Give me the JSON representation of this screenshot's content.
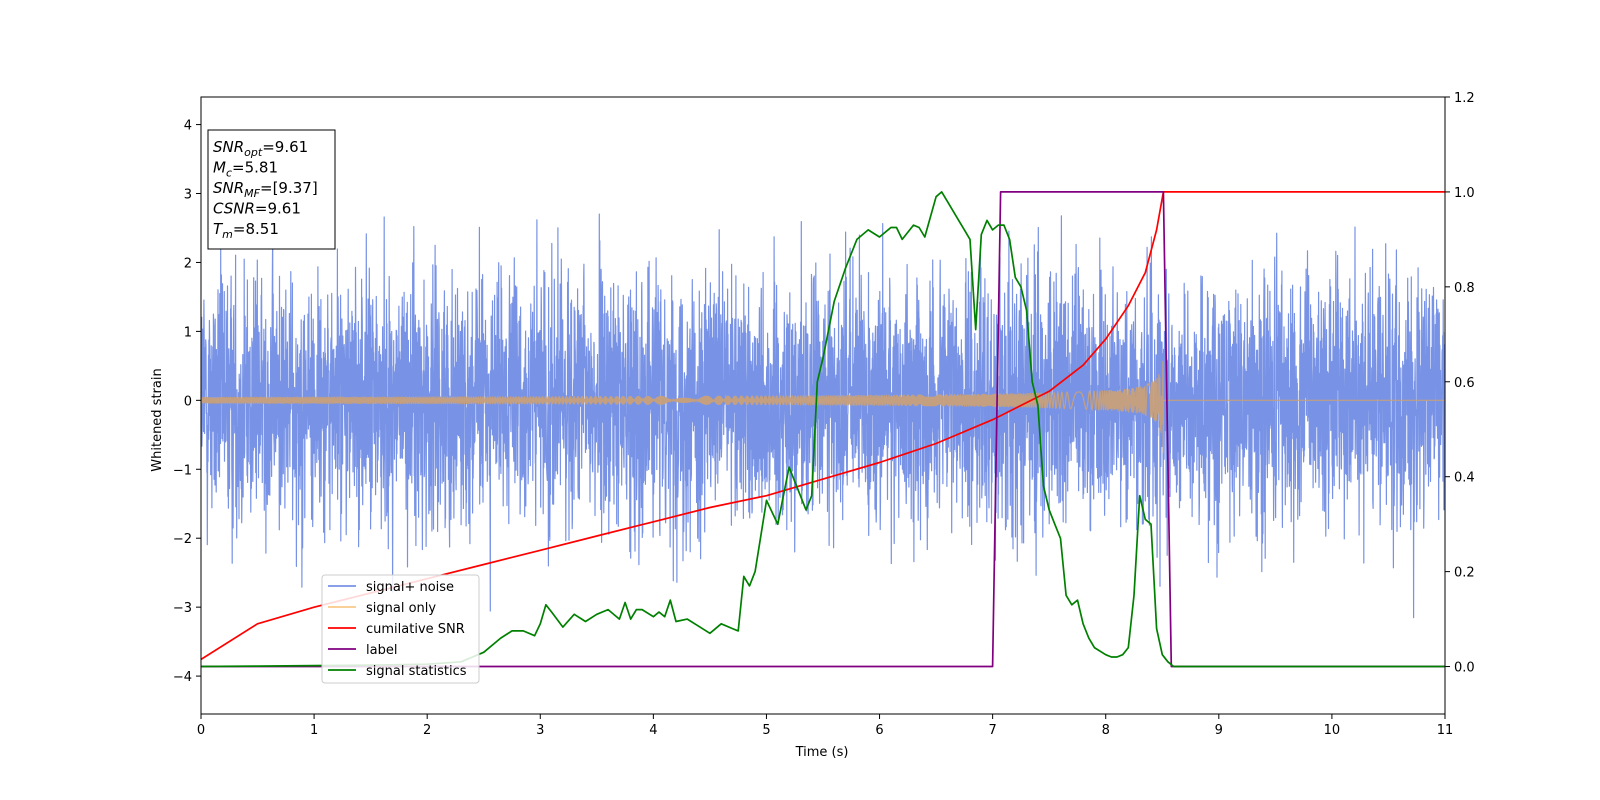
{
  "chart_data": {
    "type": "line",
    "xlabel": "Time (s)",
    "ylabel": "Whitened strain",
    "xlim": [
      0,
      11
    ],
    "ylim": [
      -4.55,
      4.4
    ],
    "y2lim": [
      -0.1,
      1.2
    ],
    "x_ticks": [
      "0",
      "1",
      "2",
      "3",
      "4",
      "5",
      "6",
      "7",
      "8",
      "9",
      "10",
      "11"
    ],
    "y_ticks": [
      "4",
      "3",
      "2",
      "1",
      "0",
      "−1",
      "−2",
      "−3",
      "−4"
    ],
    "y_tick_values": [
      4,
      3,
      2,
      1,
      0,
      -1,
      -2,
      -3,
      -4
    ],
    "y2_ticks": [
      "1.2",
      "1.0",
      "0.8",
      "0.6",
      "0.4",
      "0.2",
      "0.0"
    ],
    "y2_tick_values": [
      1.2,
      1.0,
      0.8,
      0.6,
      0.4,
      0.2,
      0.0
    ],
    "info_box": [
      {
        "sym": "SNR",
        "sub": "opt",
        "rest": "=9.61"
      },
      {
        "sym": "M",
        "sub": "c",
        "rest": "=5.81"
      },
      {
        "sym": "SNR",
        "sub": "MF",
        "rest": "=[9.37]"
      },
      {
        "sym": "CSNR",
        "sub": "",
        "rest": "=9.61"
      },
      {
        "sym": "T",
        "sub": "m",
        "rest": "=8.51"
      }
    ],
    "legend_position": "lower-left",
    "legend": [
      {
        "label": "signal+ noise",
        "color": "#7893e6"
      },
      {
        "label": "signal only",
        "color": "#f7c98a"
      },
      {
        "label": "cumilative SNR",
        "color": "#ff0000"
      },
      {
        "label": "label",
        "color": "#800080"
      },
      {
        "label": "signal statistics",
        "color": "#008000"
      }
    ],
    "series": [
      {
        "name": "signal+ noise",
        "axis": "left",
        "color": "#7893e6",
        "note": "white noise, std approx 1, peaks to about +/-4, sampled over 0-11 s"
      },
      {
        "name": "signal only",
        "axis": "left",
        "color": "#c8a07a",
        "chirp_end_time": 8.51,
        "amplitude_start": 0.05,
        "amplitude_end": 0.9
      },
      {
        "name": "cumilative SNR",
        "axis": "right",
        "color": "#ff0000",
        "x": [
          0,
          0.5,
          1,
          1.5,
          2,
          2.5,
          3,
          3.5,
          4,
          4.5,
          5,
          5.5,
          6,
          6.5,
          7,
          7.5,
          7.8,
          8.0,
          8.2,
          8.35,
          8.45,
          8.51,
          11
        ],
        "y": [
          0.015,
          0.09,
          0.125,
          0.155,
          0.185,
          0.215,
          0.245,
          0.275,
          0.305,
          0.335,
          0.36,
          0.395,
          0.43,
          0.47,
          0.52,
          0.58,
          0.635,
          0.69,
          0.76,
          0.83,
          0.92,
          1.0,
          1.0
        ]
      },
      {
        "name": "label",
        "axis": "right",
        "color": "#800080",
        "x": [
          0,
          7.0,
          7.07,
          8.51,
          8.58,
          11
        ],
        "y": [
          0,
          0,
          1,
          1,
          0,
          0
        ]
      },
      {
        "name": "signal statistics",
        "axis": "right",
        "color": "#008000",
        "x": [
          0,
          0.5,
          1,
          1.5,
          2,
          2.3,
          2.5,
          2.65,
          2.75,
          2.85,
          2.95,
          3.0,
          3.05,
          3.1,
          3.2,
          3.3,
          3.4,
          3.5,
          3.6,
          3.7,
          3.75,
          3.8,
          3.85,
          3.9,
          4.0,
          4.05,
          4.1,
          4.15,
          4.2,
          4.3,
          4.4,
          4.5,
          4.6,
          4.7,
          4.75,
          4.8,
          4.85,
          4.9,
          5.0,
          5.1,
          5.15,
          5.2,
          5.3,
          5.35,
          5.4,
          5.45,
          5.5,
          5.6,
          5.7,
          5.8,
          5.9,
          6.0,
          6.1,
          6.15,
          6.2,
          6.3,
          6.35,
          6.4,
          6.5,
          6.55,
          6.6,
          6.7,
          6.75,
          6.8,
          6.85,
          6.9,
          6.95,
          7.0,
          7.05,
          7.1,
          7.15,
          7.2,
          7.25,
          7.3,
          7.35,
          7.4,
          7.45,
          7.5,
          7.55,
          7.6,
          7.65,
          7.7,
          7.75,
          7.8,
          7.85,
          7.9,
          8.0,
          8.05,
          8.1,
          8.15,
          8.2,
          8.25,
          8.3,
          8.35,
          8.4,
          8.45,
          8.5,
          8.55,
          8.6,
          9,
          10,
          11
        ],
        "y": [
          0.0,
          0.001,
          0.002,
          0.003,
          0.005,
          0.01,
          0.03,
          0.06,
          0.075,
          0.075,
          0.065,
          0.09,
          0.13,
          0.115,
          0.083,
          0.11,
          0.095,
          0.11,
          0.12,
          0.1,
          0.135,
          0.1,
          0.12,
          0.12,
          0.105,
          0.115,
          0.105,
          0.14,
          0.095,
          0.1,
          0.085,
          0.07,
          0.09,
          0.08,
          0.075,
          0.19,
          0.17,
          0.2,
          0.35,
          0.3,
          0.36,
          0.42,
          0.36,
          0.33,
          0.36,
          0.6,
          0.65,
          0.77,
          0.84,
          0.9,
          0.92,
          0.905,
          0.925,
          0.925,
          0.9,
          0.93,
          0.925,
          0.905,
          0.99,
          1.0,
          0.98,
          0.94,
          0.92,
          0.9,
          0.71,
          0.91,
          0.94,
          0.92,
          0.93,
          0.93,
          0.9,
          0.82,
          0.8,
          0.75,
          0.6,
          0.55,
          0.38,
          0.33,
          0.3,
          0.27,
          0.15,
          0.13,
          0.14,
          0.09,
          0.06,
          0.04,
          0.025,
          0.02,
          0.02,
          0.025,
          0.04,
          0.15,
          0.36,
          0.31,
          0.3,
          0.08,
          0.025,
          0.01,
          0.0,
          0.0,
          0.0,
          0.0
        ]
      }
    ]
  }
}
